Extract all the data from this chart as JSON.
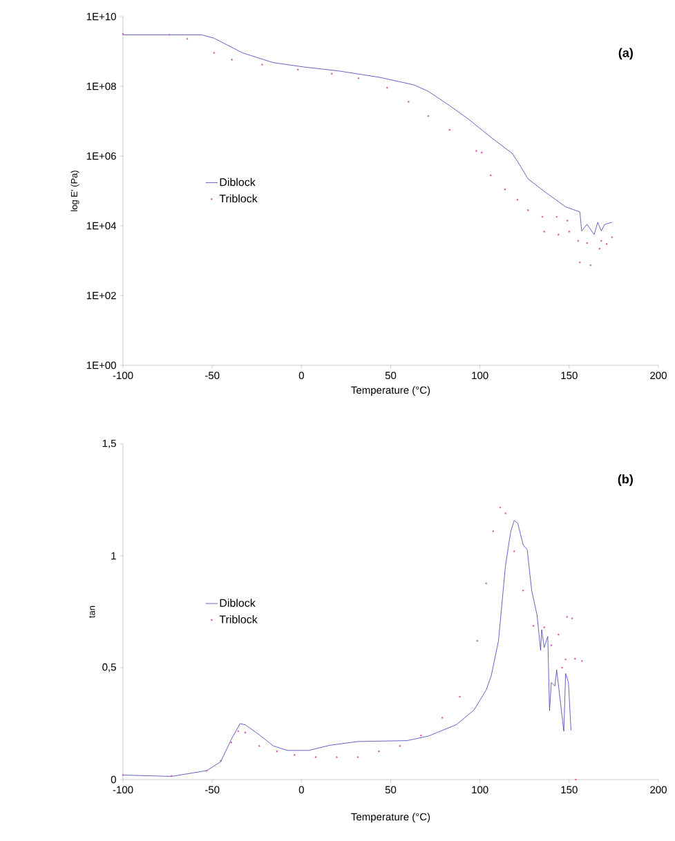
{
  "chart_data": [
    {
      "type": "line",
      "annotations": [
        "(a)"
      ],
      "xlabel": "Temperature (°C)",
      "ylabel": "log E' (Pa)",
      "log": "y",
      "legend": "left",
      "xlim": [
        -100,
        200
      ],
      "xticks": [
        -100,
        -50,
        0,
        50,
        100,
        150,
        200
      ],
      "ylim": [
        1,
        10000000000
      ],
      "yticks": [
        {
          "value": 1,
          "label": "1E+00"
        },
        {
          "value": 100,
          "label": "1E+02"
        },
        {
          "value": 10000,
          "label": "1E+04"
        },
        {
          "value": 1000000,
          "label": "1E+06"
        },
        {
          "value": 100000000,
          "label": "1E+08"
        },
        {
          "value": 10000000000,
          "label": "1E+10"
        }
      ],
      "series": [
        {
          "name": "Diblock",
          "type": "line",
          "marker": "none",
          "color": "#3c3cb4",
          "x": [
            -100,
            -56,
            -49,
            -33,
            -16,
            1,
            21,
            44,
            63,
            71,
            83,
            94,
            106,
            118,
            121,
            127,
            137,
            148,
            156,
            157,
            160,
            164,
            166,
            168,
            170,
            174
          ],
          "values": [
            3000000000.0,
            3000000000.0,
            2400000000.0,
            910000000.0,
            480000000.0,
            360000000.0,
            275000000.0,
            180000000.0,
            110000000.0,
            72000000.0,
            28000000.0,
            11000000.0,
            3500000.0,
            1200000.0,
            710000.0,
            220000.0,
            89000.0,
            35000.0,
            25000.0,
            7100.0,
            11000.0,
            5600.0,
            12600.0,
            7100.0,
            11000.0,
            12600.0
          ]
        },
        {
          "name": "Triblock",
          "type": "scatter",
          "marker": "circle",
          "color": "#d65fb5",
          "x": [
            -100,
            -74,
            -64,
            -49,
            -39,
            -22,
            -2,
            17,
            32,
            48,
            60,
            71,
            83,
            98,
            101,
            106,
            114,
            121,
            127,
            135,
            136,
            143,
            144,
            149,
            150,
            155,
            156,
            160,
            162,
            167,
            168,
            171,
            174
          ],
          "values": [
            3200000000.0,
            3000000000.0,
            2300000000.0,
            910000000.0,
            580000000.0,
            420000000.0,
            300000000.0,
            230000000.0,
            170000000.0,
            91000000.0,
            36000000.0,
            14000000.0,
            5600000.0,
            1400000.0,
            1260000.0,
            280000.0,
            110000.0,
            56000.0,
            28000.0,
            18000.0,
            6800.0,
            18000.0,
            5600.0,
            14000.0,
            6800.0,
            3700.0,
            890,
            3200.0,
            740,
            2200.0,
            3700.0,
            3000.0,
            4700.0
          ]
        }
      ]
    },
    {
      "type": "line",
      "annotations": [
        "(b)"
      ],
      "xlabel": "Temperature (°C)",
      "ylabel": "tan",
      "legend": "left",
      "xlim": [
        -100,
        200
      ],
      "xticks": [
        -100,
        -50,
        0,
        50,
        100,
        150,
        200
      ],
      "ylim": [
        0,
        1.5
      ],
      "yticks": [
        0,
        {
          "value": 0.5,
          "label": "0,5"
        },
        1,
        {
          "value": 1.5,
          "label": "1,5"
        }
      ],
      "series": [
        {
          "name": "Diblock",
          "type": "line",
          "marker": "none",
          "color": "#3c3cb4",
          "x": [
            -100,
            -72.8,
            -53,
            -45.2,
            -39.3,
            -34.4,
            -31.5,
            -23.6,
            -15.7,
            -7.8,
            4,
            15.8,
            31.6,
            59.2,
            71,
            86.7,
            96.6,
            103.5,
            106.4,
            110.4,
            114.3,
            117.3,
            119.2,
            121.2,
            124.2,
            126.5,
            129,
            132,
            134,
            134.6,
            136,
            138,
            139,
            140,
            142,
            143,
            147,
            148,
            149.6,
            151
          ],
          "values": [
            0.02,
            0.014,
            0.04,
            0.08,
            0.18,
            0.25,
            0.245,
            0.2,
            0.15,
            0.13,
            0.13,
            0.153,
            0.17,
            0.174,
            0.194,
            0.245,
            0.31,
            0.4,
            0.466,
            0.62,
            0.956,
            1.11,
            1.158,
            1.145,
            1.05,
            1.027,
            0.845,
            0.735,
            0.577,
            0.67,
            0.59,
            0.64,
            0.308,
            0.434,
            0.418,
            0.49,
            0.216,
            0.474,
            0.434,
            0.22
          ]
        },
        {
          "name": "Triblock",
          "type": "scatter",
          "marker": "circle",
          "color": "#d65fb5",
          "x": [
            -100,
            -72.8,
            -53,
            -45.2,
            -39.3,
            -35.4,
            -31.5,
            -23.6,
            -13.7,
            -3.9,
            8,
            19.8,
            31.6,
            43.4,
            55.2,
            67,
            78.9,
            88.7,
            98.5,
            103.5,
            107.4,
            111.4,
            114.3,
            119.2,
            124.2,
            130,
            136,
            140,
            144,
            146,
            148,
            148.8,
            151.7,
            153.3,
            153.7,
            157.2
          ],
          "values": [
            0.02,
            0.016,
            0.04,
            0.084,
            0.166,
            0.216,
            0.21,
            0.15,
            0.126,
            0.11,
            0.1,
            0.1,
            0.1,
            0.126,
            0.15,
            0.197,
            0.276,
            0.37,
            0.62,
            0.877,
            1.11,
            1.216,
            1.19,
            1.02,
            0.845,
            0.687,
            0.68,
            0.6,
            0.648,
            0.5,
            0.537,
            0.727,
            0.72,
            0.54,
            0.0,
            0.53
          ]
        }
      ]
    }
  ]
}
